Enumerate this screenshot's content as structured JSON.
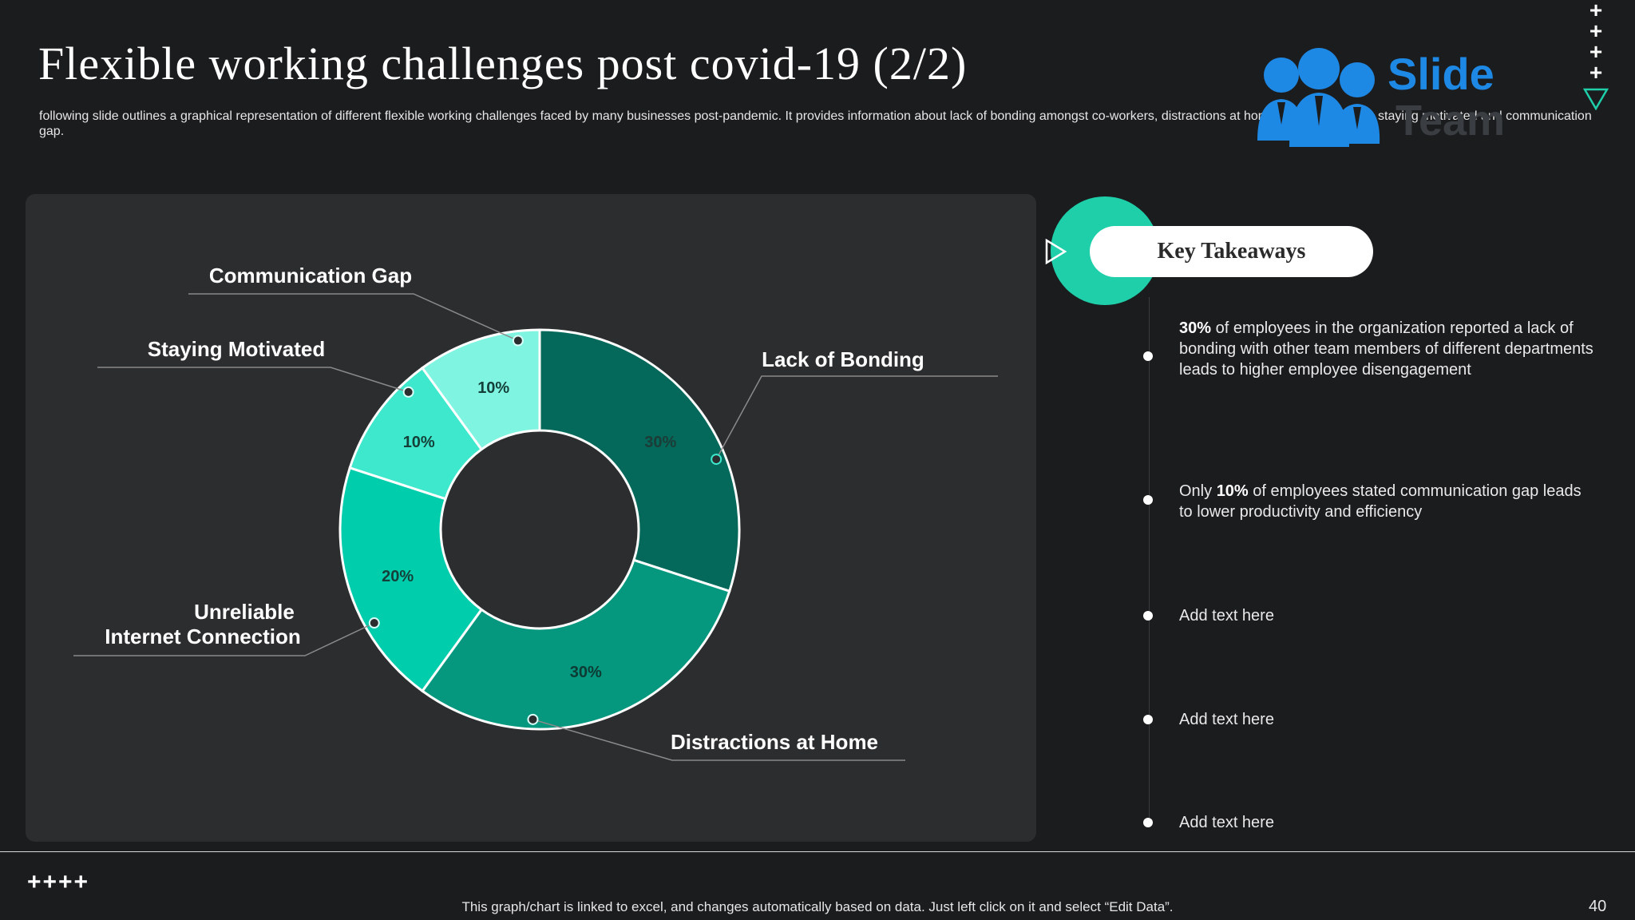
{
  "slide": {
    "title": "Flexible working challenges post covid-19 (2/2)",
    "subtitle": "following slide outlines a graphical representation of different flexible working challenges faced by many businesses post-pandemic. It provides information about lack of bonding amongst co-workers, distractions at home, poor Wi-signals, staying motivated and communication gap.",
    "page_number": "40",
    "footer_note": "This graph/chart is linked to excel, and changes automatically based on data. Just left click on it and select “Edit Data”.",
    "footer_plus": "++++"
  },
  "logo": {
    "brand": "Slide",
    "sub": "Team",
    "icon": "team-people-icon",
    "color": "#1e88e5"
  },
  "chart_data": {
    "type": "pie",
    "variant": "donut",
    "title": "",
    "slices": [
      {
        "label": "Lack of Bonding",
        "value": 30,
        "value_label": "30%",
        "color": "#04695a"
      },
      {
        "label": "Distractions at Home",
        "value": 30,
        "value_label": "30%",
        "color": "#06977f"
      },
      {
        "label": "Unreliable Internet Connection",
        "value": 20,
        "value_label": "20%",
        "color": "#00cdac"
      },
      {
        "label": "Staying Motivated",
        "value": 10,
        "value_label": "10%",
        "color": "#3de8cc"
      },
      {
        "label": "Communication Gap",
        "value": 10,
        "value_label": "10%",
        "color": "#7ff5e1"
      }
    ],
    "legend": "callout labels"
  },
  "takeaways": {
    "heading": "Key Takeaways",
    "items": [
      {
        "bold": "30%",
        "before": "",
        "after": " of employees in the organization reported a lack of bonding with other team members of different departments leads to higher employee disengagement"
      },
      {
        "bold": "10%",
        "before": "Only ",
        "after": " of employees stated communication gap leads to lower productivity and efficiency"
      },
      {
        "bold": "",
        "before": "Add text here",
        "after": ""
      },
      {
        "bold": "",
        "before": "Add text here",
        "after": ""
      },
      {
        "bold": "",
        "before": "Add text here",
        "after": ""
      }
    ]
  },
  "colors": {
    "accent": "#1ecfaa",
    "background": "#1b1c1e",
    "panel": "#2c2d2f"
  }
}
